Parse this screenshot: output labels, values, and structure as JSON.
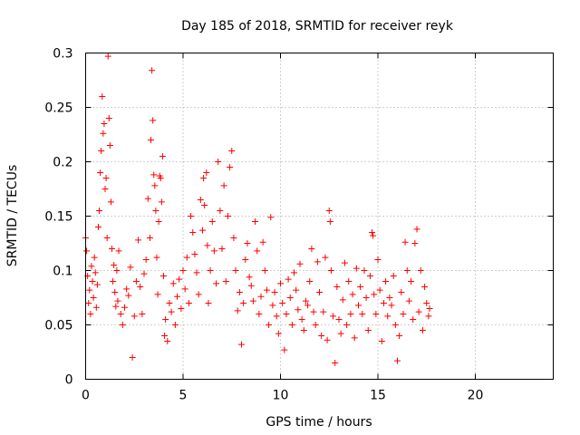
{
  "chart_data": {
    "type": "scatter",
    "title": "Day 185 of 2018, SRMTID for receiver reyk",
    "xlabel": "GPS time / hours",
    "ylabel": "SRMTID / TECUs",
    "xlim": [
      0,
      24
    ],
    "ylim": [
      0,
      0.3
    ],
    "x_ticks": [
      0,
      5,
      10,
      15,
      20
    ],
    "y_ticks": [
      0,
      0.05,
      0.1,
      0.15,
      0.2,
      0.25,
      0.3
    ],
    "x_tick_labels": [
      "0",
      "5",
      "10",
      "15",
      "20"
    ],
    "y_tick_labels": [
      "0",
      "0.05",
      "0.1",
      "0.15",
      "0.2",
      "0.25",
      "0.3"
    ],
    "grid": true,
    "legend": "none",
    "marker": "plus",
    "color": "#ff0000",
    "series": [
      {
        "points": [
          [
            0.0,
            0.13
          ],
          [
            0.05,
            0.118
          ],
          [
            0.1,
            0.095
          ],
          [
            0.15,
            0.07
          ],
          [
            0.2,
            0.082
          ],
          [
            0.25,
            0.06
          ],
          [
            0.3,
            0.104
          ],
          [
            0.35,
            0.09
          ],
          [
            0.4,
            0.075
          ],
          [
            0.45,
            0.112
          ],
          [
            0.5,
            0.098
          ],
          [
            0.55,
            0.066
          ],
          [
            0.6,
            0.087
          ],
          [
            0.65,
            0.14
          ],
          [
            0.7,
            0.155
          ],
          [
            0.75,
            0.19
          ],
          [
            0.8,
            0.21
          ],
          [
            0.85,
            0.26
          ],
          [
            0.9,
            0.226
          ],
          [
            0.95,
            0.235
          ],
          [
            1.0,
            0.175
          ],
          [
            1.05,
            0.185
          ],
          [
            1.1,
            0.13
          ],
          [
            1.15,
            0.297
          ],
          [
            1.2,
            0.24
          ],
          [
            1.25,
            0.215
          ],
          [
            1.3,
            0.163
          ],
          [
            1.35,
            0.12
          ],
          [
            1.4,
            0.09
          ],
          [
            1.45,
            0.105
          ],
          [
            1.5,
            0.08
          ],
          [
            1.55,
            0.067
          ],
          [
            1.6,
            0.1
          ],
          [
            1.65,
            0.072
          ],
          [
            1.7,
            0.118
          ],
          [
            1.8,
            0.06
          ],
          [
            1.9,
            0.05
          ],
          [
            2.0,
            0.066
          ],
          [
            2.1,
            0.083
          ],
          [
            2.2,
            0.077
          ],
          [
            2.3,
            0.103
          ],
          [
            2.4,
            0.02
          ],
          [
            2.5,
            0.058
          ],
          [
            2.6,
            0.09
          ],
          [
            2.7,
            0.128
          ],
          [
            2.8,
            0.085
          ],
          [
            2.9,
            0.06
          ],
          [
            3.0,
            0.097
          ],
          [
            3.1,
            0.11
          ],
          [
            3.2,
            0.166
          ],
          [
            3.3,
            0.13
          ],
          [
            3.35,
            0.22
          ],
          [
            3.4,
            0.284
          ],
          [
            3.45,
            0.238
          ],
          [
            3.5,
            0.188
          ],
          [
            3.55,
            0.178
          ],
          [
            3.6,
            0.155
          ],
          [
            3.65,
            0.112
          ],
          [
            3.7,
            0.078
          ],
          [
            3.75,
            0.145
          ],
          [
            3.8,
            0.187
          ],
          [
            3.85,
            0.185
          ],
          [
            3.9,
            0.163
          ],
          [
            3.95,
            0.205
          ],
          [
            4.0,
            0.095
          ],
          [
            4.05,
            0.04
          ],
          [
            4.1,
            0.055
          ],
          [
            4.2,
            0.035
          ],
          [
            4.3,
            0.07
          ],
          [
            4.4,
            0.062
          ],
          [
            4.5,
            0.088
          ],
          [
            4.6,
            0.05
          ],
          [
            4.7,
            0.076
          ],
          [
            4.8,
            0.092
          ],
          [
            4.9,
            0.065
          ],
          [
            5.0,
            0.1
          ],
          [
            5.1,
            0.083
          ],
          [
            5.2,
            0.112
          ],
          [
            5.3,
            0.07
          ],
          [
            5.4,
            0.15
          ],
          [
            5.5,
            0.135
          ],
          [
            5.6,
            0.115
          ],
          [
            5.7,
            0.098
          ],
          [
            5.8,
            0.078
          ],
          [
            5.9,
            0.165
          ],
          [
            6.0,
            0.137
          ],
          [
            6.05,
            0.185
          ],
          [
            6.1,
            0.16
          ],
          [
            6.2,
            0.19
          ],
          [
            6.25,
            0.123
          ],
          [
            6.3,
            0.07
          ],
          [
            6.4,
            0.1
          ],
          [
            6.5,
            0.145
          ],
          [
            6.6,
            0.118
          ],
          [
            6.7,
            0.088
          ],
          [
            6.8,
            0.2
          ],
          [
            6.9,
            0.155
          ],
          [
            7.0,
            0.12
          ],
          [
            7.1,
            0.178
          ],
          [
            7.2,
            0.09
          ],
          [
            7.3,
            0.15
          ],
          [
            7.4,
            0.195
          ],
          [
            7.5,
            0.21
          ],
          [
            7.6,
            0.13
          ],
          [
            7.7,
            0.1
          ],
          [
            7.8,
            0.063
          ],
          [
            7.9,
            0.08
          ],
          [
            8.0,
            0.032
          ],
          [
            8.1,
            0.07
          ],
          [
            8.2,
            0.11
          ],
          [
            8.3,
            0.125
          ],
          [
            8.4,
            0.094
          ],
          [
            8.5,
            0.086
          ],
          [
            8.6,
            0.072
          ],
          [
            8.7,
            0.145
          ],
          [
            8.8,
            0.118
          ],
          [
            8.9,
            0.06
          ],
          [
            9.0,
            0.076
          ],
          [
            9.1,
            0.126
          ],
          [
            9.2,
            0.1
          ],
          [
            9.3,
            0.082
          ],
          [
            9.4,
            0.05
          ],
          [
            9.5,
            0.149
          ],
          [
            9.6,
            0.068
          ],
          [
            9.7,
            0.08
          ],
          [
            9.8,
            0.058
          ],
          [
            9.9,
            0.042
          ],
          [
            10.0,
            0.088
          ],
          [
            10.1,
            0.07
          ],
          [
            10.2,
            0.027
          ],
          [
            10.3,
            0.06
          ],
          [
            10.4,
            0.092
          ],
          [
            10.5,
            0.075
          ],
          [
            10.6,
            0.05
          ],
          [
            10.7,
            0.098
          ],
          [
            10.8,
            0.082
          ],
          [
            10.9,
            0.064
          ],
          [
            11.0,
            0.106
          ],
          [
            11.1,
            0.055
          ],
          [
            11.2,
            0.045
          ],
          [
            11.3,
            0.072
          ],
          [
            11.4,
            0.068
          ],
          [
            11.5,
            0.09
          ],
          [
            11.6,
            0.12
          ],
          [
            11.7,
            0.062
          ],
          [
            11.8,
            0.05
          ],
          [
            11.9,
            0.108
          ],
          [
            12.0,
            0.08
          ],
          [
            12.1,
            0.04
          ],
          [
            12.2,
            0.062
          ],
          [
            12.3,
            0.112
          ],
          [
            12.4,
            0.036
          ],
          [
            12.5,
            0.155
          ],
          [
            12.55,
            0.145
          ],
          [
            12.6,
            0.1
          ],
          [
            12.7,
            0.058
          ],
          [
            12.8,
            0.015
          ],
          [
            12.9,
            0.085
          ],
          [
            13.0,
            0.055
          ],
          [
            13.1,
            0.042
          ],
          [
            13.2,
            0.073
          ],
          [
            13.3,
            0.107
          ],
          [
            13.4,
            0.05
          ],
          [
            13.5,
            0.09
          ],
          [
            13.6,
            0.06
          ],
          [
            13.7,
            0.078
          ],
          [
            13.8,
            0.038
          ],
          [
            13.9,
            0.102
          ],
          [
            14.0,
            0.068
          ],
          [
            14.1,
            0.085
          ],
          [
            14.2,
            0.06
          ],
          [
            14.3,
            0.1
          ],
          [
            14.4,
            0.075
          ],
          [
            14.5,
            0.045
          ],
          [
            14.6,
            0.095
          ],
          [
            14.7,
            0.135
          ],
          [
            14.75,
            0.132
          ],
          [
            14.8,
            0.078
          ],
          [
            14.9,
            0.06
          ],
          [
            15.0,
            0.11
          ],
          [
            15.1,
            0.082
          ],
          [
            15.2,
            0.035
          ],
          [
            15.3,
            0.07
          ],
          [
            15.4,
            0.09
          ],
          [
            15.5,
            0.058
          ],
          [
            15.6,
            0.075
          ],
          [
            15.7,
            0.068
          ],
          [
            15.8,
            0.095
          ],
          [
            15.9,
            0.05
          ],
          [
            16.0,
            0.017
          ],
          [
            16.1,
            0.04
          ],
          [
            16.2,
            0.08
          ],
          [
            16.3,
            0.06
          ],
          [
            16.4,
            0.126
          ],
          [
            16.5,
            0.1
          ],
          [
            16.6,
            0.072
          ],
          [
            16.7,
            0.09
          ],
          [
            16.8,
            0.055
          ],
          [
            16.9,
            0.125
          ],
          [
            17.0,
            0.138
          ],
          [
            17.1,
            0.062
          ],
          [
            17.2,
            0.1
          ],
          [
            17.3,
            0.045
          ],
          [
            17.4,
            0.085
          ],
          [
            17.5,
            0.07
          ],
          [
            17.6,
            0.058
          ],
          [
            17.65,
            0.065
          ]
        ]
      }
    ]
  }
}
